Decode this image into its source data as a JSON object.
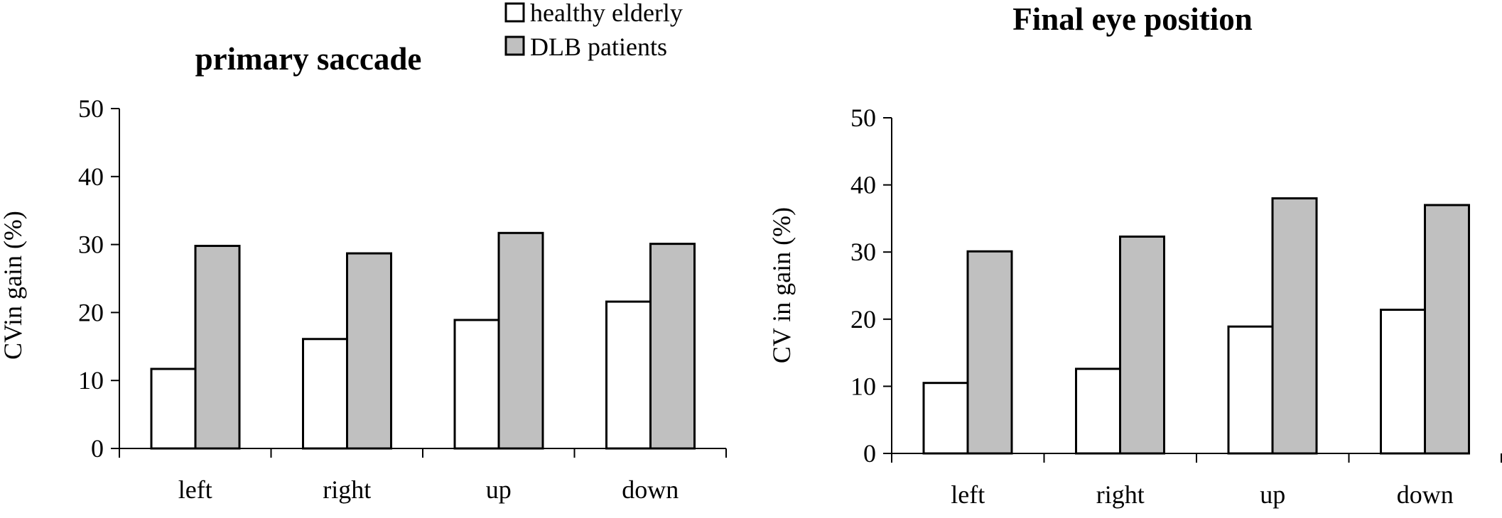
{
  "legend": {
    "items": [
      {
        "label": "healthy elderly",
        "color": "#ffffff"
      },
      {
        "label": "DLB patients",
        "color": "#c0c0c0"
      }
    ]
  },
  "chart_data": [
    {
      "type": "bar",
      "title": "primary saccade",
      "xlabel": "",
      "ylabel": "CVin gain (%)",
      "ylim": [
        0,
        50
      ],
      "yticks": [
        0,
        10,
        20,
        30,
        40,
        50
      ],
      "categories": [
        "left",
        "right",
        "up",
        "down"
      ],
      "series": [
        {
          "name": "healthy elderly",
          "color": "#ffffff",
          "values": [
            11.7,
            16.1,
            18.9,
            21.6
          ]
        },
        {
          "name": "DLB patients",
          "color": "#c0c0c0",
          "values": [
            29.8,
            28.7,
            31.7,
            30.1
          ]
        }
      ]
    },
    {
      "type": "bar",
      "title": "Final eye position",
      "xlabel": "",
      "ylabel": "CV in gain (%)",
      "ylim": [
        0,
        50
      ],
      "yticks": [
        0,
        10,
        20,
        30,
        40,
        50
      ],
      "categories": [
        "left",
        "right",
        "up",
        "down"
      ],
      "series": [
        {
          "name": "healthy elderly",
          "color": "#ffffff",
          "values": [
            10.5,
            12.6,
            18.9,
            21.4
          ]
        },
        {
          "name": "DLB patients",
          "color": "#c0c0c0",
          "values": [
            30.1,
            32.3,
            38.0,
            37.0
          ]
        }
      ]
    }
  ]
}
